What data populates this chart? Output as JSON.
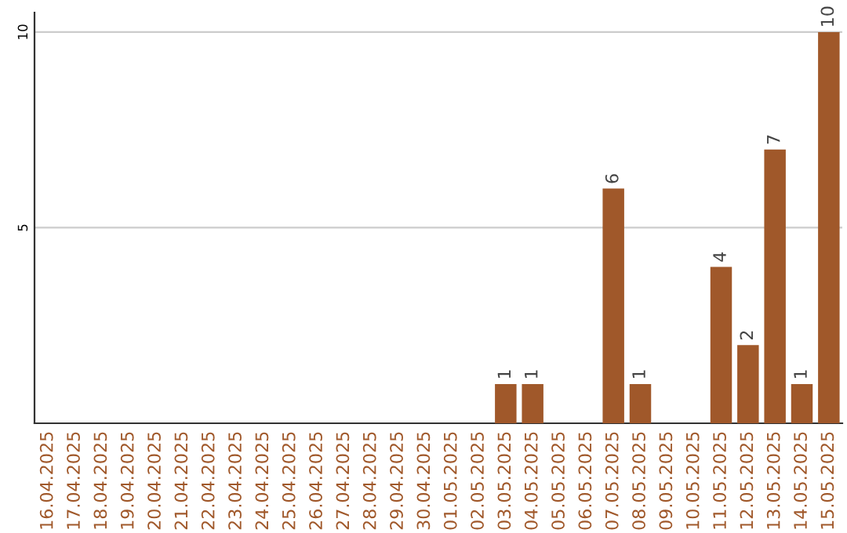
{
  "chart_data": {
    "type": "bar",
    "categories": [
      "16.04.2025",
      "17.04.2025",
      "18.04.2025",
      "19.04.2025",
      "20.04.2025",
      "21.04.2025",
      "22.04.2025",
      "23.04.2025",
      "24.04.2025",
      "25.04.2025",
      "26.04.2025",
      "27.04.2025",
      "28.04.2025",
      "29.04.2025",
      "30.04.2025",
      "01.05.2025",
      "02.05.2025",
      "03.05.2025",
      "04.05.2025",
      "05.05.2025",
      "06.05.2025",
      "07.05.2025",
      "08.05.2025",
      "09.05.2025",
      "10.05.2025",
      "11.05.2025",
      "12.05.2025",
      "13.05.2025",
      "14.05.2025",
      "15.05.2025"
    ],
    "values": [
      0,
      0,
      0,
      0,
      0,
      0,
      0,
      0,
      0,
      0,
      0,
      0,
      0,
      0,
      0,
      0,
      0,
      1,
      1,
      0,
      0,
      6,
      1,
      0,
      0,
      4,
      2,
      7,
      1,
      10
    ],
    "value_labels": [
      null,
      null,
      null,
      null,
      null,
      null,
      null,
      null,
      null,
      null,
      null,
      null,
      null,
      null,
      null,
      null,
      null,
      "1",
      "1",
      null,
      null,
      "6",
      "1",
      null,
      null,
      "4",
      "2",
      "7",
      "1",
      "10"
    ],
    "color": "#a0582a",
    "ylim": [
      0,
      10.5
    ],
    "yticks": [
      5,
      10
    ],
    "grid": "y"
  }
}
